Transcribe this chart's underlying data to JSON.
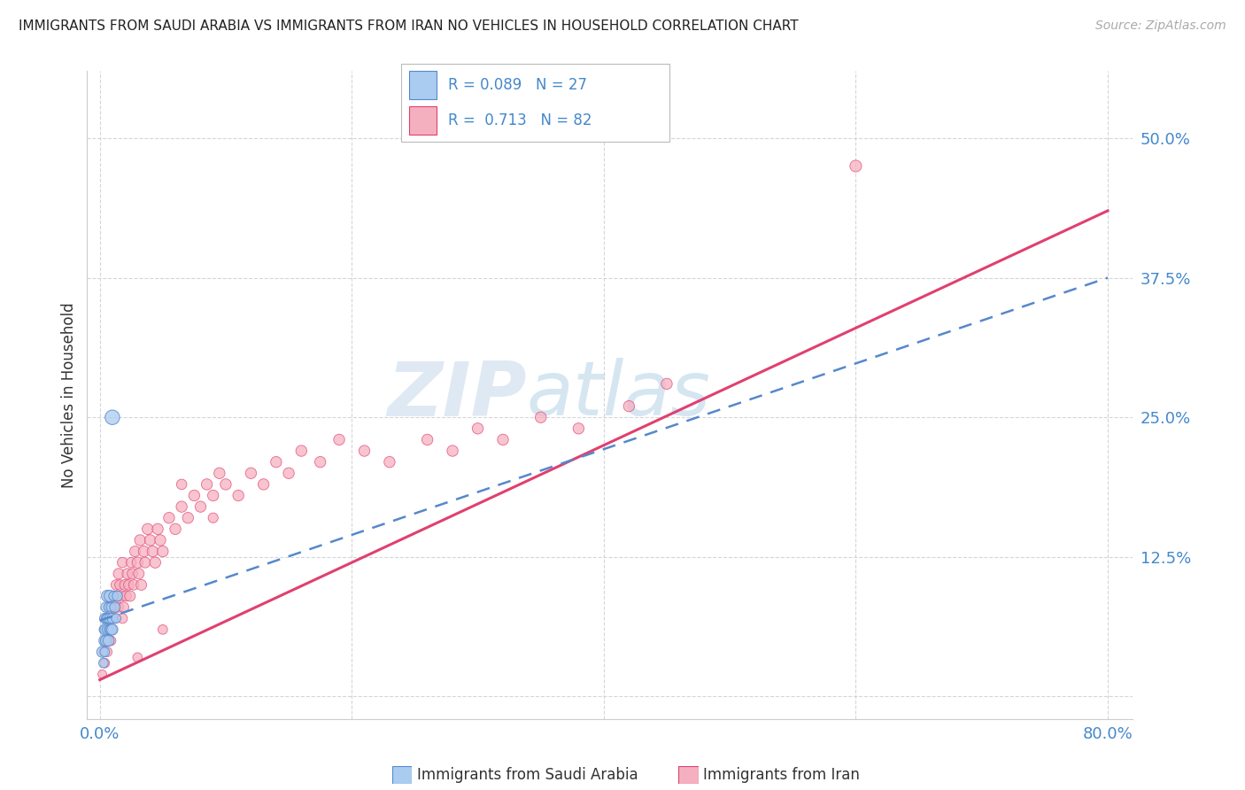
{
  "title": "IMMIGRANTS FROM SAUDI ARABIA VS IMMIGRANTS FROM IRAN NO VEHICLES IN HOUSEHOLD CORRELATION CHART",
  "source": "Source: ZipAtlas.com",
  "ylabel": "No Vehicles in Household",
  "xlim": [
    -0.01,
    0.82
  ],
  "ylim": [
    -0.02,
    0.56
  ],
  "xtick_vals": [
    0.0,
    0.2,
    0.4,
    0.6,
    0.8
  ],
  "xtick_labels": [
    "0.0%",
    "",
    "",
    "",
    "80.0%"
  ],
  "ytick_vals": [
    0.0,
    0.125,
    0.25,
    0.375,
    0.5
  ],
  "ytick_labels": [
    "",
    "12.5%",
    "25.0%",
    "37.5%",
    "50.0%"
  ],
  "color_saudi": "#aaccf0",
  "color_iran": "#f5b0c0",
  "color_saudi_line": "#5588cc",
  "color_iran_line": "#e04070",
  "color_blue_text": "#4488cc",
  "watermark_zip": "ZIP",
  "watermark_atlas": "atlas",
  "saudi_x": [
    0.002,
    0.003,
    0.003,
    0.004,
    0.004,
    0.004,
    0.005,
    0.005,
    0.005,
    0.005,
    0.006,
    0.006,
    0.006,
    0.007,
    0.007,
    0.007,
    0.008,
    0.008,
    0.009,
    0.009,
    0.01,
    0.01,
    0.011,
    0.012,
    0.013,
    0.014,
    0.01
  ],
  "saudi_y": [
    0.04,
    0.03,
    0.06,
    0.05,
    0.07,
    0.04,
    0.06,
    0.05,
    0.08,
    0.07,
    0.09,
    0.06,
    0.07,
    0.05,
    0.08,
    0.06,
    0.09,
    0.07,
    0.06,
    0.08,
    0.07,
    0.06,
    0.09,
    0.08,
    0.07,
    0.09,
    0.25
  ],
  "saudi_sizes": [
    80,
    60,
    50,
    90,
    70,
    60,
    100,
    80,
    70,
    60,
    90,
    70,
    60,
    80,
    60,
    50,
    90,
    70,
    80,
    60,
    70,
    80,
    60,
    70,
    60,
    70,
    140
  ],
  "iran_x": [
    0.002,
    0.003,
    0.004,
    0.005,
    0.005,
    0.006,
    0.006,
    0.007,
    0.007,
    0.008,
    0.008,
    0.009,
    0.009,
    0.01,
    0.01,
    0.011,
    0.012,
    0.013,
    0.013,
    0.014,
    0.015,
    0.015,
    0.016,
    0.017,
    0.018,
    0.018,
    0.019,
    0.02,
    0.021,
    0.022,
    0.023,
    0.024,
    0.025,
    0.026,
    0.027,
    0.028,
    0.03,
    0.031,
    0.032,
    0.033,
    0.035,
    0.036,
    0.038,
    0.04,
    0.042,
    0.044,
    0.046,
    0.048,
    0.05,
    0.055,
    0.06,
    0.065,
    0.07,
    0.075,
    0.08,
    0.085,
    0.09,
    0.095,
    0.1,
    0.11,
    0.12,
    0.13,
    0.14,
    0.15,
    0.16,
    0.175,
    0.19,
    0.21,
    0.23,
    0.26,
    0.28,
    0.3,
    0.32,
    0.35,
    0.38,
    0.42,
    0.45,
    0.05,
    0.065,
    0.09,
    0.6,
    0.03
  ],
  "iran_y": [
    0.02,
    0.04,
    0.03,
    0.05,
    0.06,
    0.04,
    0.07,
    0.05,
    0.08,
    0.06,
    0.09,
    0.07,
    0.05,
    0.08,
    0.06,
    0.09,
    0.07,
    0.1,
    0.08,
    0.09,
    0.11,
    0.08,
    0.1,
    0.09,
    0.12,
    0.07,
    0.08,
    0.1,
    0.09,
    0.11,
    0.1,
    0.09,
    0.12,
    0.11,
    0.1,
    0.13,
    0.12,
    0.11,
    0.14,
    0.1,
    0.13,
    0.12,
    0.15,
    0.14,
    0.13,
    0.12,
    0.15,
    0.14,
    0.13,
    0.16,
    0.15,
    0.17,
    0.16,
    0.18,
    0.17,
    0.19,
    0.18,
    0.2,
    0.19,
    0.18,
    0.2,
    0.19,
    0.21,
    0.2,
    0.22,
    0.21,
    0.23,
    0.22,
    0.21,
    0.23,
    0.22,
    0.24,
    0.23,
    0.25,
    0.24,
    0.26,
    0.28,
    0.06,
    0.19,
    0.16,
    0.475,
    0.035
  ],
  "iran_sizes": [
    50,
    55,
    60,
    65,
    55,
    60,
    65,
    70,
    60,
    65,
    70,
    65,
    60,
    70,
    65,
    70,
    65,
    70,
    65,
    70,
    75,
    65,
    70,
    75,
    70,
    65,
    70,
    75,
    70,
    75,
    70,
    75,
    70,
    75,
    70,
    75,
    80,
    75,
    80,
    75,
    80,
    75,
    80,
    80,
    80,
    80,
    80,
    80,
    80,
    80,
    80,
    80,
    80,
    80,
    80,
    80,
    80,
    80,
    80,
    80,
    80,
    80,
    80,
    80,
    80,
    80,
    80,
    80,
    80,
    80,
    80,
    80,
    80,
    80,
    80,
    80,
    80,
    60,
    70,
    65,
    90,
    60
  ],
  "iran_trendline_x0": 0.0,
  "iran_trendline_y0": 0.015,
  "iran_trendline_x1": 0.8,
  "iran_trendline_y1": 0.435,
  "saudi_trendline_x0": 0.0,
  "saudi_trendline_y0": 0.068,
  "saudi_trendline_x1": 0.8,
  "saudi_trendline_y1": 0.375
}
